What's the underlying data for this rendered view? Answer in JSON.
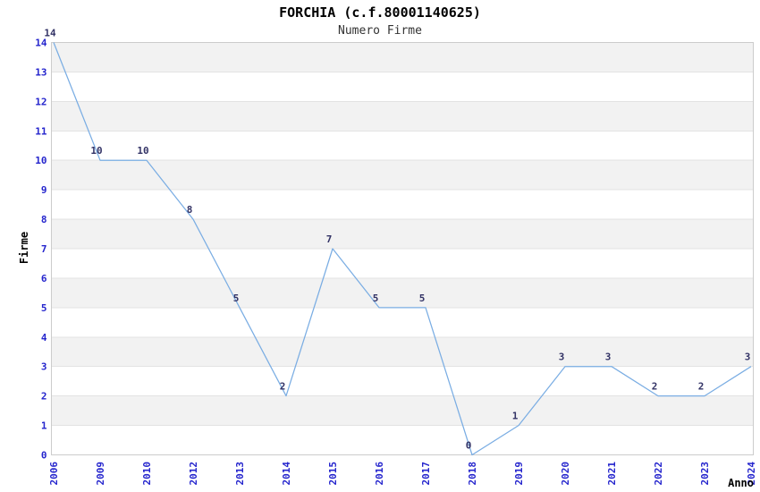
{
  "header": {
    "title": "FORCHIA (c.f.80001140625)",
    "subtitle": "Numero Firme"
  },
  "chart_data": {
    "type": "line",
    "title": "FORCHIA (c.f.80001140625)",
    "subtitle": "Numero Firme",
    "xlabel": "Anno",
    "ylabel": "Firme",
    "categories": [
      "2006",
      "2009",
      "2010",
      "2012",
      "2013",
      "2014",
      "2015",
      "2016",
      "2017",
      "2018",
      "2019",
      "2020",
      "2021",
      "2022",
      "2023",
      "2024"
    ],
    "values": [
      14,
      10,
      10,
      8,
      5,
      2,
      7,
      5,
      5,
      0,
      1,
      3,
      3,
      2,
      2,
      3
    ],
    "ylim": [
      0,
      14
    ],
    "ytick_step": 1,
    "yticks": [
      0,
      1,
      2,
      3,
      4,
      5,
      6,
      7,
      8,
      9,
      10,
      11,
      12,
      13,
      14
    ],
    "grid": "horizontal",
    "alternating_bands": true,
    "data_labels_shown": true,
    "legend": "none",
    "colors": {
      "line": "#7aade3",
      "tick_label": "#2525cd",
      "data_label": "#333366",
      "band": "#f2f2f2",
      "grid_line": "#e3e3e3",
      "axis_border": "#cccccc",
      "background": "#ffffff",
      "title": "#000000",
      "subtitle": "#333333"
    }
  }
}
